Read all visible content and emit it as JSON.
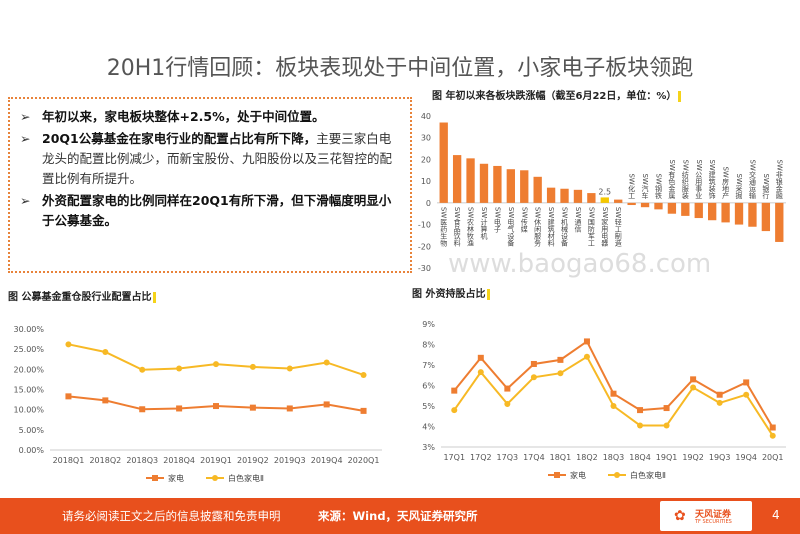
{
  "title": "20H1行情回顾：板块表现处于中间位置，小家电子板块领跑",
  "bullets": [
    {
      "bold": "年初以来，家电板块整体+2.5%，处于中间位置。",
      "rest": ""
    },
    {
      "bold": "20Q1公募基金在家电行业的配置占比有所下降，",
      "rest": "主要三家白电龙头的配置比例减少，而新宝股份、九阳股份以及三花智控的配置比例有所提升。"
    },
    {
      "bold": "外资配置家电的比例同样在20Q1有所下滑，但下滑幅度明显小于公募基金。",
      "rest": ""
    }
  ],
  "bullet_marker": "➢",
  "watermark": "www.baogao68.com",
  "footer": {
    "disclaimer": "请务必阅读正文之后的信息披露和免责申明",
    "source": "来源：Wind，天风证券研究所",
    "logo_text": "天风证券",
    "logo_sub": "TF SECURITIES",
    "page": "4"
  },
  "colors": {
    "accent": "#e8833a",
    "bar": "#ee7d31",
    "highlight": "#f5c800",
    "yellow": "#f7b925",
    "footer": "#e8501d"
  },
  "chart_data": [
    {
      "type": "bar",
      "title": "图 年初以来各板块跌涨幅（截至6月22日，单位：%）",
      "categories": [
        "SW医药生物",
        "SW食品饮料",
        "SW农林牧渔",
        "SW计算机",
        "SW电子",
        "SW电气设备",
        "SW传媒",
        "SW休闲服务",
        "SW建筑材料",
        "SW机械设备",
        "SW通信",
        "SW国防军工",
        "SW家用电器",
        "SW轻工制造",
        "SW化工",
        "SW汽车",
        "SW钢铁",
        "SW有色金属",
        "SW纺织服装",
        "SW公用事业",
        "SW建筑装饰",
        "SW房地产",
        "SW采掘",
        "SW交通运输",
        "SW银行",
        "SW非银金融"
      ],
      "values": [
        37,
        22,
        20.5,
        18,
        17,
        15.5,
        15,
        12,
        7,
        6.5,
        6,
        4.5,
        2.5,
        1.5,
        -1,
        -2,
        -3,
        -5,
        -6,
        -7,
        -8,
        -9,
        -10,
        -11,
        -13,
        -18
      ],
      "highlight_index": 12,
      "data_labels": {
        "12": "2.5"
      },
      "ylim": [
        -30,
        40
      ],
      "yticks": [
        "40",
        "30",
        "20",
        "10",
        "0",
        "-10",
        "-20",
        "-30"
      ]
    },
    {
      "type": "line",
      "title": "图 公募基金重仓股行业配置占比",
      "categories": [
        "2018Q1",
        "2018Q2",
        "2018Q3",
        "2018Q4",
        "2019Q1",
        "2019Q2",
        "2019Q3",
        "2019Q4",
        "2020Q1"
      ],
      "series": [
        {
          "name": "家电",
          "values": [
            13.3,
            12.3,
            10.1,
            10.3,
            10.9,
            10.5,
            10.3,
            11.3,
            9.7
          ]
        },
        {
          "name": "白色家电Ⅱ",
          "values": [
            26.2,
            24.3,
            19.9,
            20.2,
            21.3,
            20.6,
            20.2,
            21.7,
            18.6
          ]
        }
      ],
      "ylim": [
        0,
        30
      ],
      "yticks": [
        "30.00%",
        "25.00%",
        "20.00%",
        "15.00%",
        "10.00%",
        "5.00%",
        "0.00%"
      ]
    },
    {
      "type": "line",
      "title": "图 外资持股占比",
      "categories": [
        "17Q1",
        "17Q2",
        "17Q3",
        "17Q4",
        "18Q1",
        "18Q2",
        "18Q3",
        "18Q4",
        "19Q1",
        "19Q2",
        "19Q3",
        "19Q4",
        "20Q1"
      ],
      "series": [
        {
          "name": "家电",
          "values": [
            5.75,
            7.35,
            5.85,
            7.05,
            7.25,
            8.15,
            5.6,
            4.8,
            4.9,
            6.3,
            5.55,
            6.15,
            3.95
          ]
        },
        {
          "name": "白色家电Ⅱ",
          "values": [
            4.8,
            6.65,
            5.1,
            6.4,
            6.6,
            7.4,
            5.0,
            4.05,
            4.05,
            5.9,
            5.15,
            5.55,
            3.55
          ]
        }
      ],
      "ylim": [
        3,
        9
      ],
      "yticks": [
        "9%",
        "8%",
        "7%",
        "6%",
        "5%",
        "4%",
        "3%"
      ]
    }
  ]
}
